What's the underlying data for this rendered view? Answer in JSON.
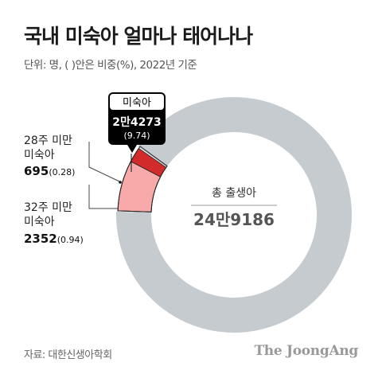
{
  "chart_data": {
    "type": "pie",
    "title": "국내 미숙아 얼마나 태어나나",
    "subtitle": "단위: 명, (  )안은 비중(%), 2022년 기준",
    "total": {
      "label": "총 출생아",
      "value": "24만9186"
    },
    "slices": [
      {
        "name": "32주 미만 미숙아",
        "value": 2352,
        "value_text": "2352",
        "pct": "(0.94)",
        "pct_value": 0.94,
        "color": "#f8aaaa"
      },
      {
        "name": "28주 미만 미숙아",
        "value": 695,
        "value_text": "695",
        "pct": "(0.28)",
        "pct_value": 0.28,
        "color": "#d12b2b"
      },
      {
        "name": "미숙아",
        "value_text": "2만4273",
        "pct": "(9.74)",
        "pct_value": 9.74,
        "color": "#ffffff"
      }
    ],
    "rest_color": "#c5cbcf",
    "source": "자료: 대한신생아학회",
    "brand": "The JoongAng"
  }
}
